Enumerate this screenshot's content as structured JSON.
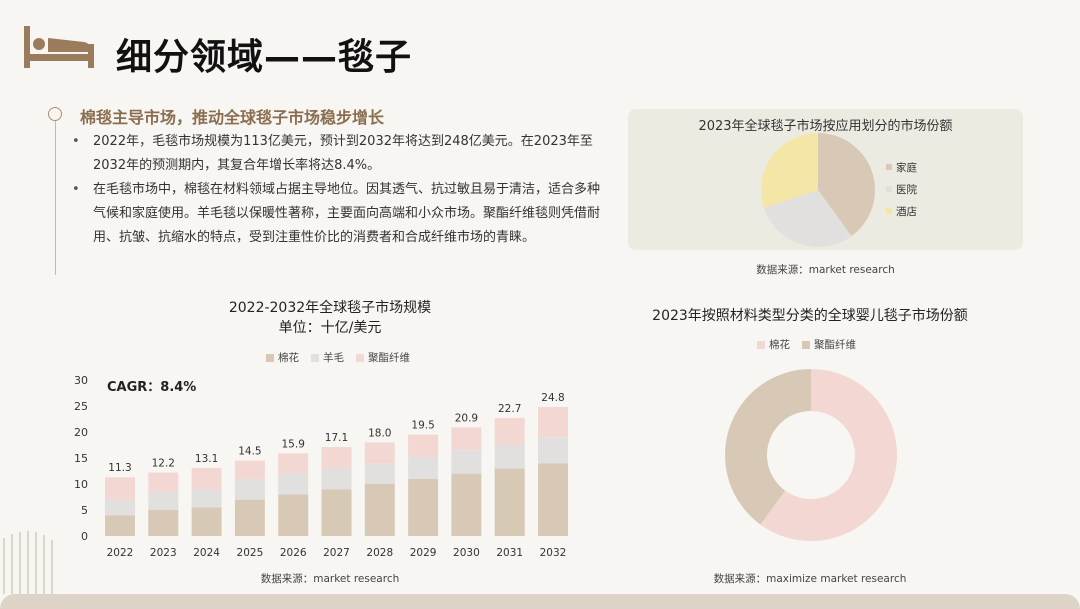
{
  "page": {
    "title": "细分领域——毯子"
  },
  "section": {
    "heading": "棉毯主导市场，推动全球毯子市场稳步增长",
    "bullets": [
      "2022年，毛毯市场规模为113亿美元，预计到2032年将达到248亿美元。在2023年至2032年的预测期内，其复合年增长率将达8.4%。",
      "在毛毯市场中，棉毯在材料领域占据主导地位。因其透气、抗过敏且易于清洁，适合多种气候和家庭使用。羊毛毯以保暖性著称，主要面向高端和小众市场。聚酯纤维毯则凭借耐用、抗皱、抗缩水的特点，受到注重性价比的消费者和合成纤维市场的青睐。"
    ]
  },
  "colors": {
    "cotton": "#d8c9b7",
    "wool": "#e2e0de",
    "polyester": "#f2d7d2",
    "home": "#d8c9b7",
    "hospital": "#e2e0de",
    "hotel": "#f3e6a6",
    "accent": "#8a6e4f",
    "band": "#ddd3c6"
  },
  "chart_data": [
    {
      "type": "pie",
      "title": "2023年全球毯子市场按应用划分的市场份额",
      "categories": [
        "家庭",
        "医院",
        "酒店"
      ],
      "values": [
        40,
        30,
        30
      ],
      "legend": "right",
      "source": "数据来源：market research"
    },
    {
      "type": "bar",
      "stacked": true,
      "title": "2022-2032年全球毯子市场规模",
      "subtitle": "单位：十亿/美元",
      "categories": [
        "2022",
        "2023",
        "2024",
        "2025",
        "2026",
        "2027",
        "2028",
        "2029",
        "2030",
        "2031",
        "2032"
      ],
      "series": [
        {
          "name": "棉花",
          "values": [
            4,
            5,
            5.5,
            7,
            8,
            9,
            10,
            11,
            12,
            13,
            14
          ]
        },
        {
          "name": "羊毛",
          "values": [
            3,
            3.5,
            3.5,
            4,
            4,
            4,
            4,
            4.2,
            4.5,
            4.5,
            5
          ]
        },
        {
          "name": "聚酯纤维",
          "values": [
            4.3,
            3.7,
            4.1,
            3.5,
            3.9,
            4.1,
            4.0,
            4.3,
            4.4,
            5.2,
            5.8
          ]
        }
      ],
      "totals": [
        "11.3",
        "12.2",
        "13.1",
        "14.5",
        "15.9",
        "17.1",
        "18.0",
        "19.5",
        "20.9",
        "22.7",
        "24.8"
      ],
      "ylim": [
        0,
        30
      ],
      "yticks": [
        0,
        5,
        10,
        15,
        20,
        25,
        30
      ],
      "annotation": "CAGR：8.4%",
      "legend": "top",
      "grid": false,
      "source": "数据来源：market research"
    },
    {
      "type": "pie",
      "donut": true,
      "title": "2023年按照材料类型分类的全球婴儿毯子市场份额",
      "categories": [
        "棉花",
        "聚酯纤维"
      ],
      "values": [
        60,
        40
      ],
      "legend": "top",
      "source": "数据来源：maximize market research"
    }
  ]
}
